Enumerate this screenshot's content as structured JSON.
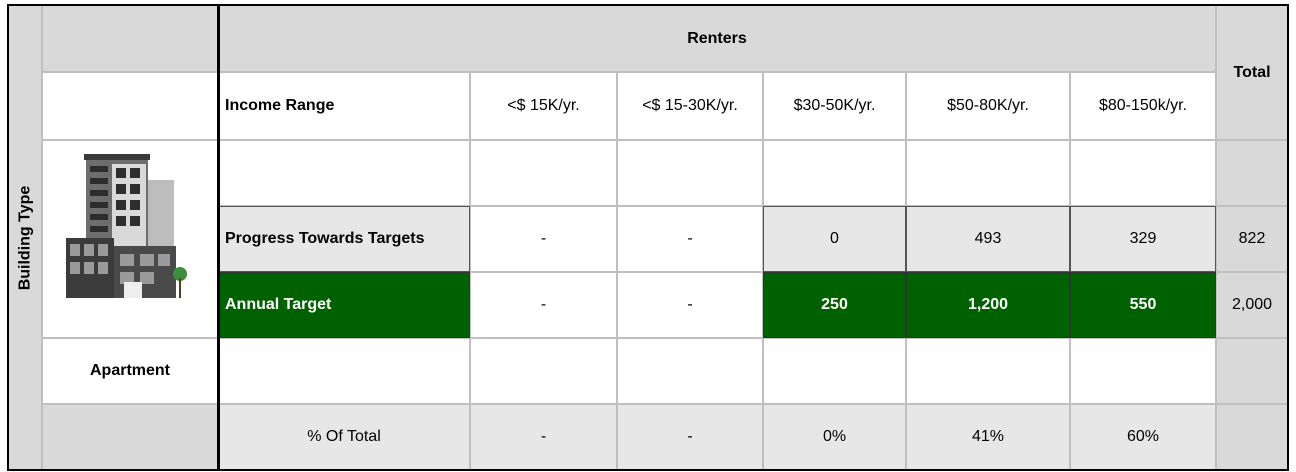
{
  "side_label": "Building Type",
  "building": {
    "name": "Apartment"
  },
  "table": {
    "group_header": "Renters",
    "total_header": "Total",
    "columns_label": "Income Range",
    "columns": [
      "<$ 15K/yr.",
      "<$ 15-30K/yr.",
      "$30-50K/yr.",
      "$50-80K/yr.",
      "$80-150k/yr."
    ],
    "rows": [
      {
        "label": "Progress Towards Targets",
        "values": [
          "-",
          "-",
          "0",
          "493",
          "329"
        ],
        "total": "822"
      },
      {
        "label": "Annual Target",
        "values": [
          "-",
          "-",
          "250",
          "1,200",
          "550"
        ],
        "total": "2,000"
      },
      {
        "label": "% Of Total",
        "values": [
          "-",
          "-",
          "0%",
          "41%",
          "60%"
        ]
      }
    ]
  }
}
